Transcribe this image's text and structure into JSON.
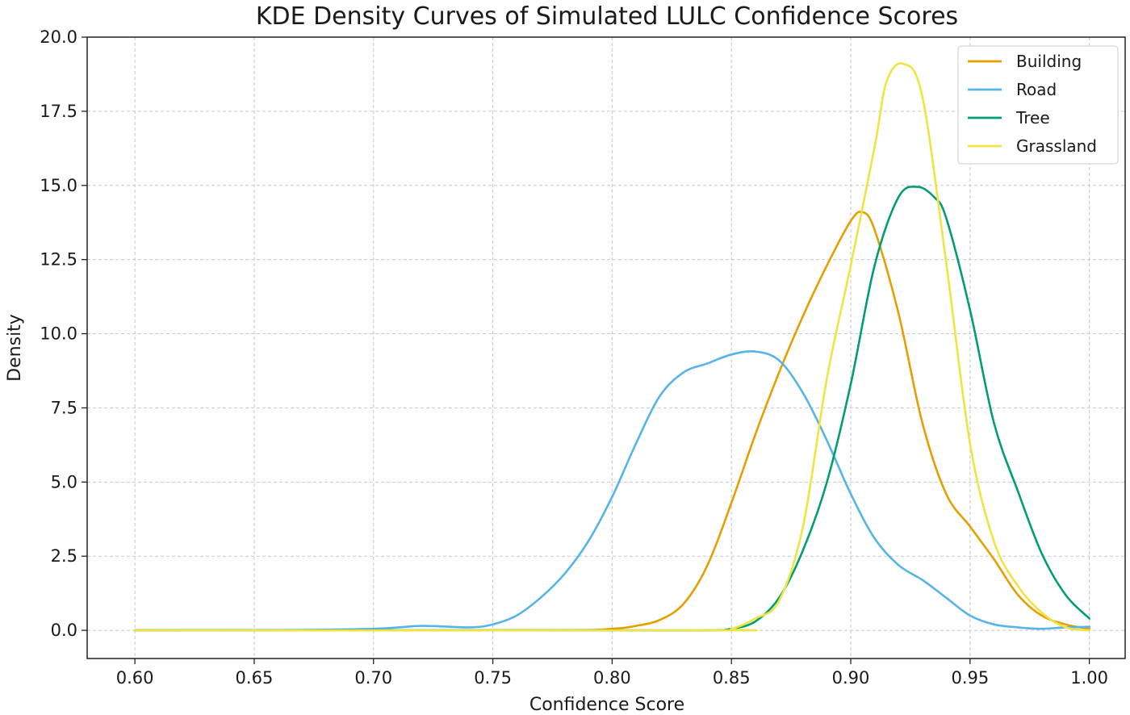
{
  "chart_data": {
    "type": "line",
    "title": "KDE Density Curves of Simulated LULC Confidence Scores",
    "xlabel": "Confidence Score",
    "ylabel": "Density",
    "xlim": [
      0.58,
      1.015
    ],
    "ylim": [
      -0.95,
      20.0
    ],
    "xticks": [
      "0.60",
      "0.65",
      "0.70",
      "0.75",
      "0.80",
      "0.85",
      "0.90",
      "0.95",
      "1.00"
    ],
    "yticks": [
      "0.0",
      "2.5",
      "5.0",
      "7.5",
      "10.0",
      "12.5",
      "15.0",
      "17.5",
      "20.0"
    ],
    "grid": true,
    "legend_position": "top-right",
    "series": [
      {
        "name": "Building",
        "color": "#E69F00",
        "x": [
          0.6,
          0.7,
          0.78,
          0.8,
          0.81,
          0.82,
          0.83,
          0.84,
          0.85,
          0.86,
          0.87,
          0.88,
          0.89,
          0.9,
          0.905,
          0.91,
          0.92,
          0.93,
          0.94,
          0.95,
          0.96,
          0.97,
          0.98,
          0.99,
          1.0
        ],
        "y": [
          0,
          0,
          0,
          0.05,
          0.15,
          0.35,
          0.9,
          2.2,
          4.3,
          6.6,
          8.7,
          10.6,
          12.3,
          13.8,
          14.1,
          13.5,
          10.7,
          7.0,
          4.6,
          3.5,
          2.4,
          1.2,
          0.5,
          0.2,
          0.05
        ]
      },
      {
        "name": "Road",
        "color": "#56B4E9",
        "x": [
          0.6,
          0.65,
          0.7,
          0.72,
          0.74,
          0.75,
          0.76,
          0.77,
          0.78,
          0.79,
          0.8,
          0.81,
          0.82,
          0.83,
          0.84,
          0.85,
          0.86,
          0.87,
          0.88,
          0.89,
          0.9,
          0.91,
          0.92,
          0.93,
          0.94,
          0.95,
          0.96,
          0.97,
          0.98,
          0.99,
          1.0
        ],
        "y": [
          0,
          0,
          0.05,
          0.15,
          0.1,
          0.2,
          0.5,
          1.1,
          1.9,
          3.0,
          4.5,
          6.3,
          7.9,
          8.7,
          9.0,
          9.3,
          9.4,
          9.1,
          8.0,
          6.4,
          4.6,
          3.1,
          2.2,
          1.7,
          1.1,
          0.5,
          0.2,
          0.1,
          0.05,
          0.1,
          0.12
        ]
      },
      {
        "name": "Tree",
        "color": "#009E73",
        "x": [
          0.6,
          0.8,
          0.84,
          0.85,
          0.86,
          0.87,
          0.88,
          0.89,
          0.9,
          0.91,
          0.92,
          0.928,
          0.935,
          0.94,
          0.95,
          0.96,
          0.97,
          0.98,
          0.99,
          1.0
        ],
        "y": [
          0,
          0,
          0,
          0.05,
          0.3,
          1.1,
          2.7,
          5.0,
          8.3,
          12.3,
          14.6,
          14.95,
          14.6,
          13.9,
          10.8,
          7.0,
          4.7,
          2.6,
          1.2,
          0.4
        ]
      },
      {
        "name": "Grassland",
        "color": "#F0E442",
        "x": [
          0.6,
          0.84,
          0.85,
          0.86,
          0.87,
          0.88,
          0.89,
          0.9,
          0.91,
          0.915,
          0.922,
          0.93,
          0.94,
          0.95,
          0.96,
          0.97,
          0.98,
          0.99,
          1.0
        ],
        "y": [
          0,
          0,
          0.05,
          0.4,
          1.0,
          3.5,
          8.5,
          12.3,
          16.3,
          18.5,
          19.1,
          18.0,
          12.4,
          6.3,
          3.0,
          1.5,
          0.6,
          0.1,
          0.0
        ]
      }
    ]
  }
}
